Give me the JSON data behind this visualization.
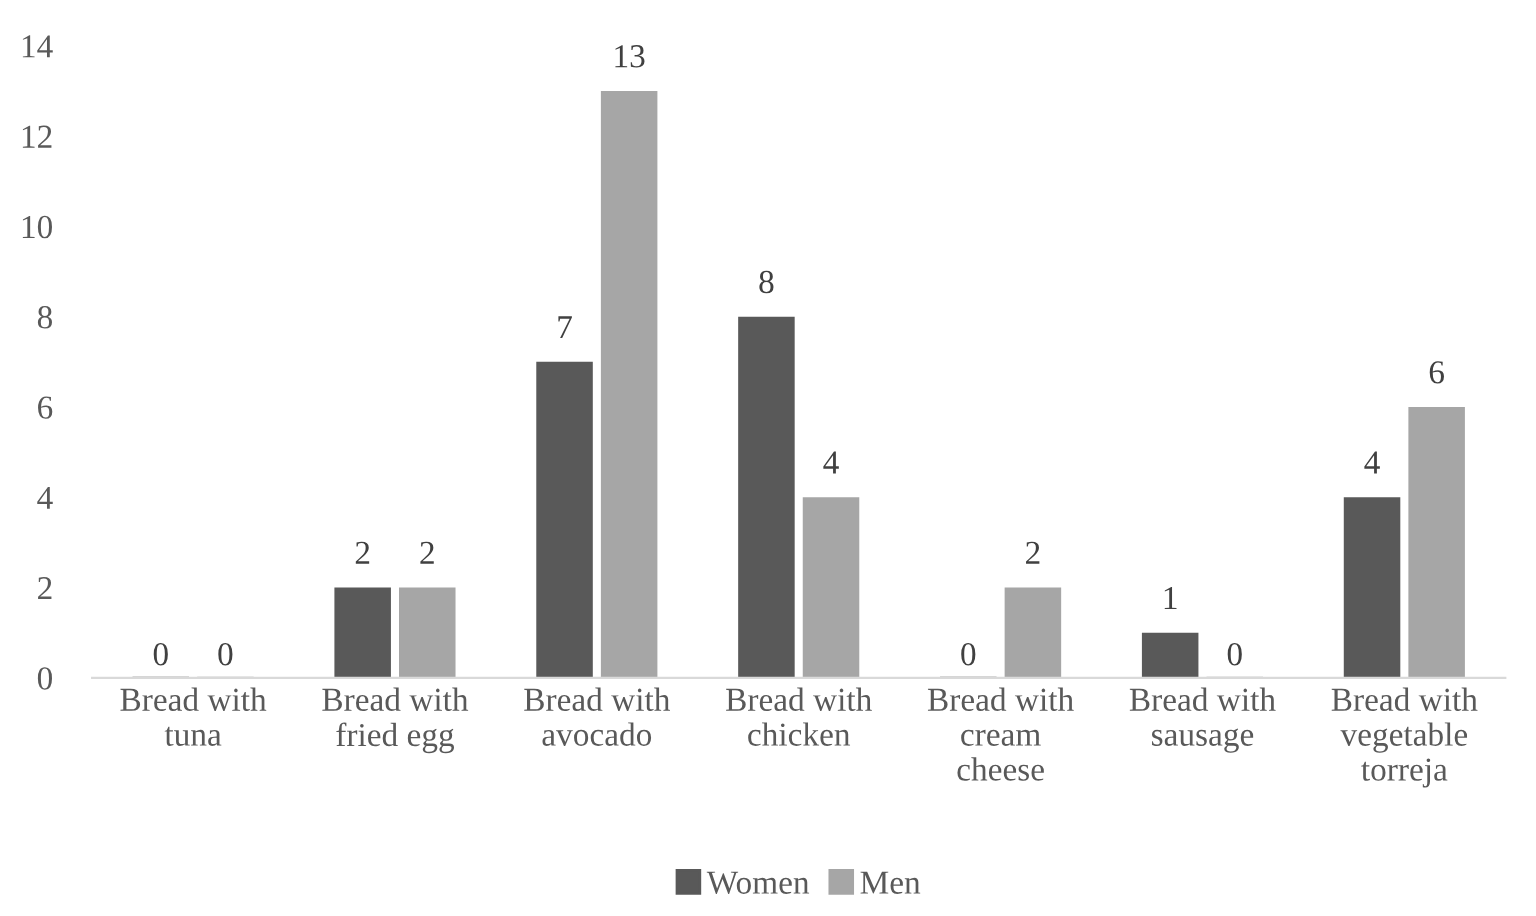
{
  "chart_data": {
    "type": "bar",
    "categories": [
      "Bread with\ntuna",
      "Bread with\nfried egg",
      "Bread with\navocado",
      "Bread with\nchicken",
      "Bread with\ncream\ncheese",
      "Bread with\nsausage",
      "Bread with\nvegetable\ntorreja"
    ],
    "series": [
      {
        "name": "Women",
        "color": "#595959",
        "values": [
          0,
          2,
          7,
          8,
          0,
          1,
          4
        ]
      },
      {
        "name": "Men",
        "color": "#a6a6a6",
        "values": [
          0,
          2,
          13,
          4,
          2,
          0,
          6
        ]
      }
    ],
    "ylim": [
      0,
      14
    ],
    "yticks": [
      0,
      2,
      4,
      6,
      8,
      10,
      12,
      14
    ],
    "grid": false,
    "legend": "bottom",
    "data_labels": true
  }
}
